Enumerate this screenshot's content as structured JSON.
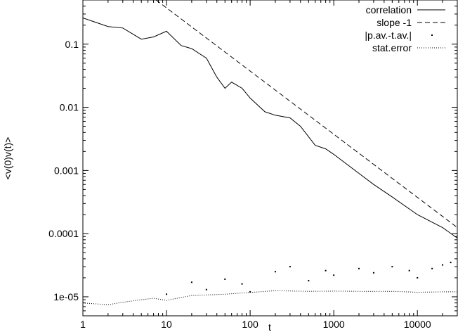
{
  "chart_data": {
    "type": "line",
    "title": "",
    "xlabel": "t",
    "ylabel": "<v(0)v(t)>",
    "x_scale": "log",
    "y_scale": "log",
    "xlim": [
      1,
      30000
    ],
    "ylim": [
      5e-06,
      0.5
    ],
    "grid": false,
    "legend_position": "top-right",
    "x_ticks": [
      {
        "value": 1,
        "label": "1"
      },
      {
        "value": 10,
        "label": "10"
      },
      {
        "value": 100,
        "label": "100"
      },
      {
        "value": 1000,
        "label": "1000"
      },
      {
        "value": 10000,
        "label": "10000"
      }
    ],
    "y_ticks": [
      {
        "value": 0.1,
        "label": "0.1"
      },
      {
        "value": 0.01,
        "label": "0.01"
      },
      {
        "value": 0.001,
        "label": "0.001"
      },
      {
        "value": 0.0001,
        "label": "0.0001"
      },
      {
        "value": 1e-05,
        "label": "1e-05"
      }
    ],
    "series": [
      {
        "name": "correlation",
        "style": "solid",
        "x": [
          1,
          2,
          3,
          5,
          7,
          10,
          15,
          20,
          30,
          40,
          50,
          60,
          80,
          100,
          150,
          200,
          300,
          400,
          600,
          800,
          1000,
          2000,
          3000,
          5000,
          10000,
          20000,
          30000
        ],
        "y": [
          0.26,
          0.19,
          0.18,
          0.12,
          0.13,
          0.16,
          0.095,
          0.085,
          0.06,
          0.03,
          0.02,
          0.025,
          0.02,
          0.014,
          0.0085,
          0.0075,
          0.0068,
          0.005,
          0.0025,
          0.0022,
          0.0018,
          0.0009,
          0.0006,
          0.00038,
          0.0002,
          0.000125,
          8.5e-05
        ]
      },
      {
        "name": "slope -1",
        "style": "dashed",
        "x": [
          7.5,
          30000
        ],
        "y": [
          0.5,
          0.000125
        ]
      },
      {
        "name": "|p.av.-t.av.|",
        "style": "points",
        "x": [
          10,
          20,
          30,
          50,
          80,
          100,
          200,
          300,
          500,
          800,
          1000,
          2000,
          3000,
          5000,
          8000,
          10000,
          15000,
          20000,
          25000
        ],
        "y": [
          1.1e-05,
          1.7e-05,
          1.3e-05,
          1.9e-05,
          1.6e-05,
          1.2e-05,
          2.5e-05,
          3e-05,
          1.8e-05,
          2.6e-05,
          2.2e-05,
          2.8e-05,
          2.4e-05,
          3e-05,
          2.6e-05,
          2e-05,
          2.8e-05,
          3.2e-05,
          3.5e-05
        ]
      },
      {
        "name": "stat.error",
        "style": "dotted",
        "x": [
          1,
          2,
          3,
          5,
          7,
          10,
          20,
          50,
          100,
          200,
          500,
          1000,
          2000,
          5000,
          10000,
          20000,
          30000
        ],
        "y": [
          8e-06,
          7.5e-06,
          8.2e-06,
          9e-06,
          9.5e-06,
          8.8e-06,
          1.05e-05,
          1.1e-05,
          1.17e-05,
          1.25e-05,
          1.22e-05,
          1.23e-05,
          1.22e-05,
          1.22e-05,
          1.18e-05,
          1.2e-05,
          1.2e-05
        ]
      }
    ]
  }
}
